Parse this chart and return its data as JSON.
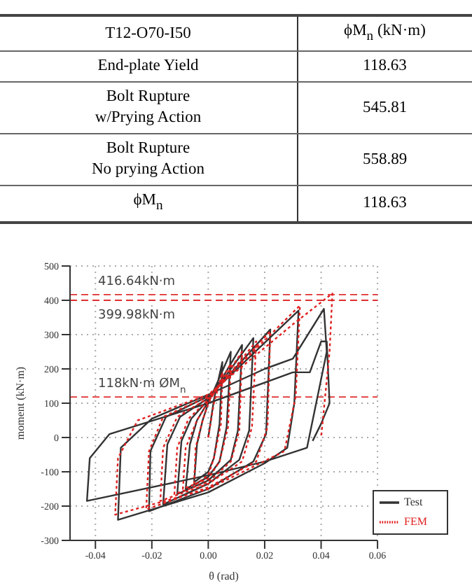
{
  "chart_data": [
    {
      "type": "other",
      "annotations": [
        "T12-O70-I50",
        "ϕM$_{n}$ (kN·m)",
        "End-plate Yield",
        "118.63",
        "Bolt Rupture\nw/Prying Action",
        "545.81",
        "Bolt Rupture\nNo prying Action",
        "558.89",
        "ϕM$_{n}$",
        "118.63"
      ]
    },
    {
      "type": "line",
      "xlabel": "θ (rad)",
      "ylabel": "moment (kN·m)",
      "xlim": [
        -0.049,
        0.06
      ],
      "xticks": [
        -0.04,
        -0.02,
        {
          "value": 0,
          "label": "0.00"
        },
        0.02,
        0.04,
        0.06
      ],
      "ylim": [
        -300,
        500
      ],
      "yticks": [
        -300,
        -200,
        -100,
        0,
        100,
        200,
        300,
        400,
        500
      ],
      "grid": true,
      "legend": "bottom right",
      "ref_lines": [
        {
          "axis": "y",
          "value": 416.64,
          "label": "416.64kN·m",
          "color": "#e03030",
          "line_style": "dashed"
        },
        {
          "axis": "y",
          "value": 399.98,
          "label": "399.98kN·m",
          "color": "#e03030",
          "line_style": "dashed"
        },
        {
          "axis": "y",
          "value": 118,
          "label": "118kN·m ØM$_{n}$",
          "color": "#e03030",
          "line_style": "dashed"
        }
      ],
      "series": [
        {
          "name": "Test",
          "color": "#333333",
          "line_style": "solid",
          "x": [
            0,
            0.002,
            0.005,
            0.004,
            0.002,
            0,
            -0.005,
            -0.004,
            -0.002,
            0,
            0.008,
            0.0065,
            0.004,
            0,
            -0.008,
            -0.0065,
            -0.004,
            0,
            0.012,
            0.0105,
            0.008,
            0,
            -0.011,
            -0.0095,
            -0.006,
            0,
            0.016,
            0.0145,
            0.011,
            0,
            -0.016,
            -0.0145,
            -0.01,
            0,
            0.022,
            0.0205,
            0.016,
            0,
            -0.021,
            -0.0205,
            -0.015,
            0,
            0.032,
            0.0305,
            0.028,
            0.02,
            0,
            -0.032,
            -0.031,
            -0.02,
            0,
            0.02,
            0.03,
            0.041,
            0.042,
            0.035,
            0.02,
            0,
            -0.043,
            -0.042,
            -0.035,
            0,
            0.03,
            0.036,
            0.04,
            0.042,
            0.043,
            0.04,
            0.037
          ],
          "values": [
            0,
            110,
            220,
            40,
            -60,
            -100,
            -130,
            -20,
            50,
            100,
            250,
            30,
            -70,
            -115,
            -150,
            -20,
            50,
            105,
            270,
            20,
            -65,
            -125,
            -165,
            -10,
            55,
            110,
            290,
            20,
            -65,
            -135,
            -195,
            -20,
            60,
            115,
            315,
            10,
            -70,
            -150,
            -215,
            -40,
            60,
            120,
            370,
            100,
            -30,
            -75,
            -160,
            -240,
            -30,
            55,
            125,
            200,
            230,
            375,
            250,
            -30,
            -70,
            -110,
            -185,
            -60,
            10,
            100,
            190,
            190,
            280,
            280,
            100,
            40,
            -10
          ]
        },
        {
          "name": "FEM",
          "color": "#e02020",
          "line_style": "dotted",
          "x": [
            0,
            0.002,
            0.005,
            0.0045,
            0.002,
            0,
            -0.005,
            -0.0045,
            -0.002,
            0,
            0.008,
            0.007,
            0.004,
            0,
            -0.009,
            -0.008,
            -0.004,
            0,
            0.012,
            0.011,
            0.008,
            0,
            -0.012,
            -0.011,
            -0.007,
            0,
            0.017,
            0.0155,
            0.012,
            0,
            -0.017,
            -0.016,
            -0.011,
            0,
            0.022,
            0.021,
            0.017,
            0,
            -0.022,
            -0.021,
            -0.016,
            0,
            0.0325,
            0.031,
            0.027,
            0,
            -0.033,
            -0.032,
            -0.025,
            0,
            0.03,
            0.044,
            0.043,
            0.04
          ],
          "values": [
            0,
            100,
            190,
            40,
            -60,
            -110,
            -140,
            -30,
            50,
            100,
            215,
            30,
            -70,
            -120,
            -150,
            -30,
            50,
            105,
            250,
            20,
            -70,
            -130,
            -165,
            -30,
            55,
            110,
            280,
            30,
            -70,
            -135,
            -185,
            -30,
            60,
            115,
            310,
            30,
            -70,
            -145,
            -210,
            -40,
            60,
            120,
            385,
            120,
            -40,
            -150,
            -225,
            -60,
            50,
            125,
            330,
            420,
            250,
            0
          ]
        }
      ]
    }
  ]
}
